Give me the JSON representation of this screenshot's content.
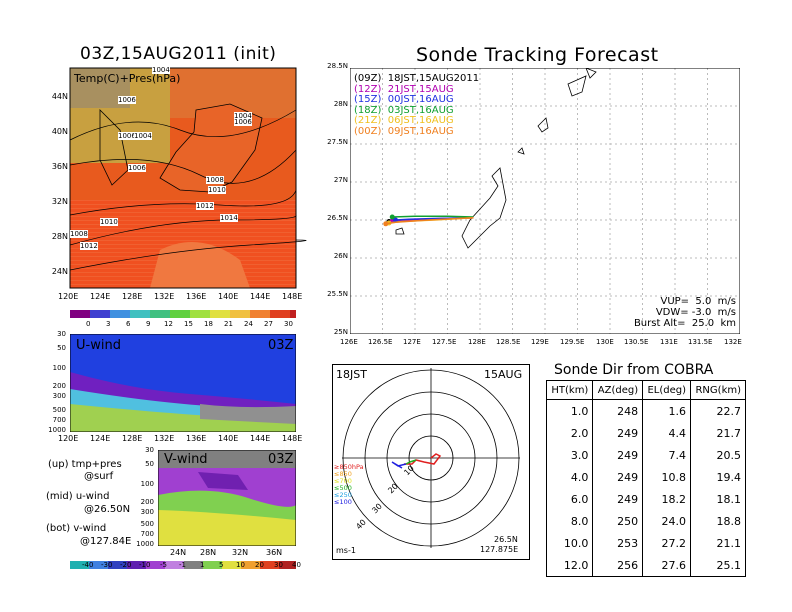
{
  "top_left": {
    "title": "03Z,15AUG2011 (init)",
    "field_label": "Temp(C)+Pres(hPa)",
    "lat_ticks": [
      "44N",
      "40N",
      "36N",
      "32N",
      "28N",
      "24N"
    ],
    "lon_ticks": [
      "120E",
      "124E",
      "128E",
      "132E",
      "136E",
      "140E",
      "144E",
      "148E"
    ],
    "isobar_labels": [
      "1004",
      "1006",
      "1006",
      "1004",
      "1004",
      "1006",
      "1006",
      "1008",
      "1010",
      "1012",
      "1014",
      "1010",
      "1012",
      "1008"
    ],
    "colorbar": [
      "0",
      "3",
      "6",
      "9",
      "12",
      "15",
      "18",
      "21",
      "24",
      "27",
      "30"
    ]
  },
  "u_panel": {
    "label": "U-wind",
    "time": "03Z",
    "p_ticks": [
      "30",
      "50",
      "100",
      "200",
      "300",
      "500",
      "700",
      "1000"
    ],
    "lon_ticks": [
      "120E",
      "124E",
      "128E",
      "132E",
      "136E",
      "140E",
      "144E",
      "148E"
    ]
  },
  "v_panel": {
    "label": "V-wind",
    "time": "03Z",
    "p_ticks": [
      "30",
      "50",
      "100",
      "200",
      "300",
      "500",
      "700",
      "1000"
    ],
    "lat_ticks": [
      "24N",
      "28N",
      "32N",
      "36N"
    ],
    "colorbar": [
      "-40",
      "-30",
      "-20",
      "-10",
      "-5",
      "-1",
      "1",
      "5",
      "10",
      "20",
      "30",
      "40"
    ]
  },
  "legend_notes": {
    "up": "(up) tmp+pres",
    "up2": "@surf",
    "mid": "(mid) u-wind",
    "mid2": "@26.50N",
    "bot": "(bot) v-wind",
    "bot2": "@127.84E"
  },
  "track": {
    "title": "Sonde Tracking Forecast",
    "lat_ticks": [
      "28.5N",
      "28N",
      "27.5N",
      "27N",
      "26.5N",
      "26N",
      "25.5N",
      "25N"
    ],
    "lon_ticks": [
      "126E",
      "126.5E",
      "127E",
      "127.5E",
      "128E",
      "128.5E",
      "129E",
      "129.5E",
      "130E",
      "130.5E",
      "131E",
      "131.5E",
      "132E"
    ],
    "legend": [
      {
        "text": "(09Z)  18JST,15AUG2011",
        "color": "#000000"
      },
      {
        "text": "(12Z)  21JST,15AUG",
        "color": "#b000b0"
      },
      {
        "text": "(15Z)  00JST,16AUG",
        "color": "#2030e0"
      },
      {
        "text": "(18Z)  03JST,16AUG",
        "color": "#10a030"
      },
      {
        "text": "(21Z)  06JST,16AUG",
        "color": "#f0c020"
      },
      {
        "text": "(00Z)  09JST,16AUG",
        "color": "#f08020"
      }
    ],
    "vup": "VUP=  5.0  m/s",
    "vdw": "VDW= -3.0  m/s",
    "burst": "Burst Alt=  25.0  km"
  },
  "chart_data": [
    {
      "type": "line",
      "title": "Sonde Tracking Forecast",
      "xlim": [
        126,
        132
      ],
      "ylim": [
        25,
        28.5
      ],
      "series": [
        {
          "name": "(09Z) 18JST,15AUG2011",
          "x": [
            127.9,
            127.5,
            127.0,
            126.7,
            126.6
          ],
          "y": [
            26.53,
            26.52,
            26.5,
            26.49,
            26.48
          ]
        },
        {
          "name": "(12Z) 21JST,15AUG",
          "x": [
            127.9,
            127.4,
            126.9,
            126.65
          ],
          "y": [
            26.53,
            26.52,
            26.5,
            26.49
          ]
        },
        {
          "name": "(15Z) 00JST,16AUG",
          "x": [
            127.9,
            127.3,
            126.9,
            126.7
          ],
          "y": [
            26.53,
            26.52,
            26.51,
            26.5
          ]
        },
        {
          "name": "(18Z) 03JST,16AUG",
          "x": [
            127.9,
            127.5,
            127.0,
            126.65
          ],
          "y": [
            26.54,
            26.55,
            26.55,
            26.54
          ]
        },
        {
          "name": "(21Z) 06JST,16AUG",
          "x": [
            127.9,
            127.3,
            126.8,
            126.6
          ],
          "y": [
            26.53,
            26.5,
            26.48,
            26.46
          ]
        },
        {
          "name": "(00Z) 09JST,16AUG",
          "x": [
            127.9,
            127.2,
            126.7,
            126.55
          ],
          "y": [
            26.53,
            26.5,
            26.47,
            26.45
          ]
        }
      ]
    },
    {
      "type": "table",
      "title": "Sonde Dir from COBRA",
      "columns": [
        "HT(km)",
        "AZ(deg)",
        "EL(deg)",
        "RNG(km)"
      ],
      "rows": [
        [
          "1.0",
          "248",
          "1.6",
          "22.7"
        ],
        [
          "2.0",
          "249",
          "4.4",
          "21.7"
        ],
        [
          "3.0",
          "249",
          "7.4",
          "20.5"
        ],
        [
          "4.0",
          "249",
          "10.8",
          "19.4"
        ],
        [
          "6.0",
          "249",
          "18.2",
          "18.1"
        ],
        [
          "8.0",
          "250",
          "24.0",
          "18.8"
        ],
        [
          "10.0",
          "253",
          "27.2",
          "21.1"
        ],
        [
          "12.0",
          "256",
          "27.6",
          "25.1"
        ]
      ]
    }
  ],
  "hodo": {
    "time_left": "18JST",
    "time_right": "15AUG",
    "ring_labels": [
      "10",
      "20",
      "30",
      "40"
    ],
    "pressure_legend": [
      {
        "text": "≥850hPa",
        "color": "#e02020"
      },
      {
        "text": "≤850",
        "color": "#f0a020"
      },
      {
        "text": "≤700",
        "color": "#e0e020"
      },
      {
        "text": "≤500",
        "color": "#20b020"
      },
      {
        "text": "≤250",
        "color": "#20a0e0"
      },
      {
        "text": "≤100",
        "color": "#2020e0"
      }
    ],
    "units": "ms-1",
    "loc_lat": "26.5N",
    "loc_lon": "127.875E"
  }
}
